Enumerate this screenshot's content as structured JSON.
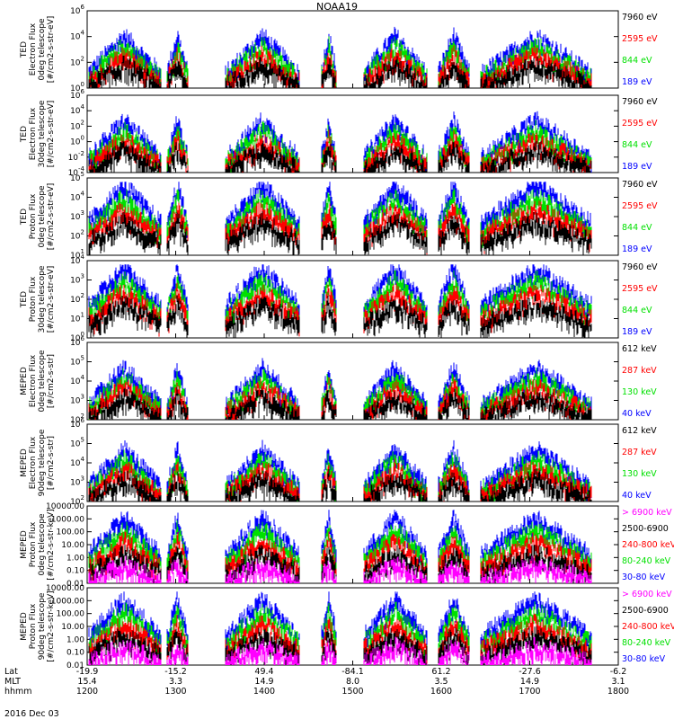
{
  "title": "NOAA19",
  "date": "2016 Dec 03",
  "footer": {
    "rows": [
      {
        "label": "Lat",
        "values": [
          "-19.9",
          "-15.2",
          "49.4",
          "-84.1",
          "61.2",
          "-27.6",
          "-6.2"
        ]
      },
      {
        "label": "MLT",
        "values": [
          "15.4",
          "3.3",
          "14.9",
          "8.0",
          "3.5",
          "14.9",
          "3.1"
        ]
      },
      {
        "label": "hhmm",
        "values": [
          "1200",
          "1300",
          "1400",
          "1500",
          "1600",
          "1700",
          "1800"
        ]
      }
    ]
  },
  "colors": {
    "blue": "#0000ff",
    "red": "#ff0000",
    "green": "#00e000",
    "black": "#000000",
    "magenta": "#ff00ff"
  },
  "chart_data": [
    {
      "type": "line",
      "ylabel": [
        "TED",
        "Electron Flux",
        "0deg telescope",
        "[#/cm2-s-str-eV]"
      ],
      "scale": "log",
      "ylim": [
        1,
        1000000
      ],
      "yticks": [
        {
          "label": "10",
          "exp": "0"
        },
        {
          "label": "10",
          "exp": "2"
        },
        {
          "label": "10",
          "exp": "4"
        },
        {
          "label": "10",
          "exp": "6"
        }
      ],
      "legend": [
        {
          "text": "7960 eV",
          "color": "black"
        },
        {
          "text": "2595 eV",
          "color": "red"
        },
        {
          "text": "844 eV",
          "color": "green"
        },
        {
          "text": "189 eV",
          "color": "blue"
        }
      ]
    },
    {
      "type": "line",
      "ylabel": [
        "TED",
        "Electron Flux",
        "30deg telescope",
        "[#/cm2-s-str-eV]"
      ],
      "scale": "log",
      "ylim": [
        0.0001,
        1000000
      ],
      "yticks": [
        {
          "label": "10",
          "exp": "-4"
        },
        {
          "label": "10",
          "exp": "-2"
        },
        {
          "label": "10",
          "exp": "0"
        },
        {
          "label": "10",
          "exp": "2"
        },
        {
          "label": "10",
          "exp": "4"
        },
        {
          "label": "10",
          "exp": "6"
        }
      ],
      "legend": [
        {
          "text": "7960 eV",
          "color": "black"
        },
        {
          "text": "2595 eV",
          "color": "red"
        },
        {
          "text": "844 eV",
          "color": "green"
        },
        {
          "text": "189 eV",
          "color": "blue"
        }
      ]
    },
    {
      "type": "line",
      "ylabel": [
        "TED",
        "Proton Flux",
        "0deg telescope",
        "[#/cm2-s-str-eV]"
      ],
      "scale": "log",
      "ylim": [
        1,
        100000
      ],
      "yticks": [
        {
          "label": "10",
          "exp": "1"
        },
        {
          "label": "10",
          "exp": "2"
        },
        {
          "label": "10",
          "exp": "3"
        },
        {
          "label": "10",
          "exp": "4"
        },
        {
          "label": "10",
          "exp": "5"
        }
      ],
      "legend": [
        {
          "text": "7960 eV",
          "color": "black"
        },
        {
          "text": "2595 eV",
          "color": "red"
        },
        {
          "text": "844 eV",
          "color": "green"
        },
        {
          "text": "189 eV",
          "color": "blue"
        }
      ]
    },
    {
      "type": "line",
      "ylabel": [
        "TED",
        "Proton Flux",
        "30deg telescope",
        "[#/cm2-s-str-eV]"
      ],
      "scale": "log",
      "ylim": [
        1,
        100000
      ],
      "yticks": [
        {
          "label": "10",
          "exp": "0"
        },
        {
          "label": "10",
          "exp": "1"
        },
        {
          "label": "10",
          "exp": "2"
        },
        {
          "label": "10",
          "exp": "3"
        },
        {
          "label": "10",
          "exp": "4"
        }
      ],
      "legend": [
        {
          "text": "7960 eV",
          "color": "black"
        },
        {
          "text": "2595 eV",
          "color": "red"
        },
        {
          "text": "844 eV",
          "color": "green"
        },
        {
          "text": "189 eV",
          "color": "blue"
        }
      ]
    },
    {
      "type": "line",
      "ylabel": [
        "MEPED",
        "Electron Flux",
        "0deg telescope",
        "[#/cm2-s-str]"
      ],
      "scale": "log",
      "ylim": [
        100,
        1000000
      ],
      "yticks": [
        {
          "label": "10",
          "exp": "2"
        },
        {
          "label": "10",
          "exp": "3"
        },
        {
          "label": "10",
          "exp": "4"
        },
        {
          "label": "10",
          "exp": "5"
        },
        {
          "label": "10",
          "exp": "6"
        }
      ],
      "legend": [
        {
          "text": "612 keV",
          "color": "black"
        },
        {
          "text": "287 keV",
          "color": "red"
        },
        {
          "text": "130 keV",
          "color": "green"
        },
        {
          "text": "40 keV",
          "color": "blue"
        }
      ]
    },
    {
      "type": "line",
      "ylabel": [
        "MEPED",
        "Electron Flux",
        "90deg telescope",
        "[#/cm2-s-str]"
      ],
      "scale": "log",
      "ylim": [
        100,
        1000000
      ],
      "yticks": [
        {
          "label": "10",
          "exp": "2"
        },
        {
          "label": "10",
          "exp": "3"
        },
        {
          "label": "10",
          "exp": "4"
        },
        {
          "label": "10",
          "exp": "5"
        },
        {
          "label": "10",
          "exp": "6"
        }
      ],
      "legend": [
        {
          "text": "612 keV",
          "color": "black"
        },
        {
          "text": "287 keV",
          "color": "red"
        },
        {
          "text": "130 keV",
          "color": "green"
        },
        {
          "text": "40 keV",
          "color": "blue"
        }
      ]
    },
    {
      "type": "line",
      "ylabel": [
        "MEPED",
        "Proton Flux",
        "0deg telescope",
        "[#/cm2-s-str-keV]"
      ],
      "scale": "log",
      "ylim": [
        0.01,
        10000
      ],
      "yticks": [
        {
          "label": "0.01",
          "exp": ""
        },
        {
          "label": "0.10",
          "exp": ""
        },
        {
          "label": "1.00",
          "exp": ""
        },
        {
          "label": "10.00",
          "exp": ""
        },
        {
          "label": "100.00",
          "exp": ""
        },
        {
          "label": "1000.00",
          "exp": ""
        },
        {
          "label": "10000.00",
          "exp": ""
        }
      ],
      "legend": [
        {
          "text": "> 6900 keV",
          "color": "magenta"
        },
        {
          "text": "2500-6900",
          "color": "black"
        },
        {
          "text": "240-800 keV",
          "color": "red"
        },
        {
          "text": "80-240 keV",
          "color": "green"
        },
        {
          "text": "30-80 keV",
          "color": "blue"
        }
      ]
    },
    {
      "type": "line",
      "ylabel": [
        "MEPED",
        "Proton Flux",
        "90deg telescope",
        "[#/cm2-s-str-keV]"
      ],
      "scale": "log",
      "ylim": [
        0.01,
        10000
      ],
      "yticks": [
        {
          "label": "0.01",
          "exp": ""
        },
        {
          "label": "0.10",
          "exp": ""
        },
        {
          "label": "1.00",
          "exp": ""
        },
        {
          "label": "10.00",
          "exp": ""
        },
        {
          "label": "100.00",
          "exp": ""
        },
        {
          "label": "1000.00",
          "exp": ""
        },
        {
          "label": "10000.00",
          "exp": ""
        }
      ],
      "legend": [
        {
          "text": "> 6900 keV",
          "color": "magenta"
        },
        {
          "text": "2500-6900",
          "color": "black"
        },
        {
          "text": "240-800 keV",
          "color": "red"
        },
        {
          "text": "80-240 keV",
          "color": "green"
        },
        {
          "text": "30-80 keV",
          "color": "blue"
        }
      ]
    }
  ]
}
